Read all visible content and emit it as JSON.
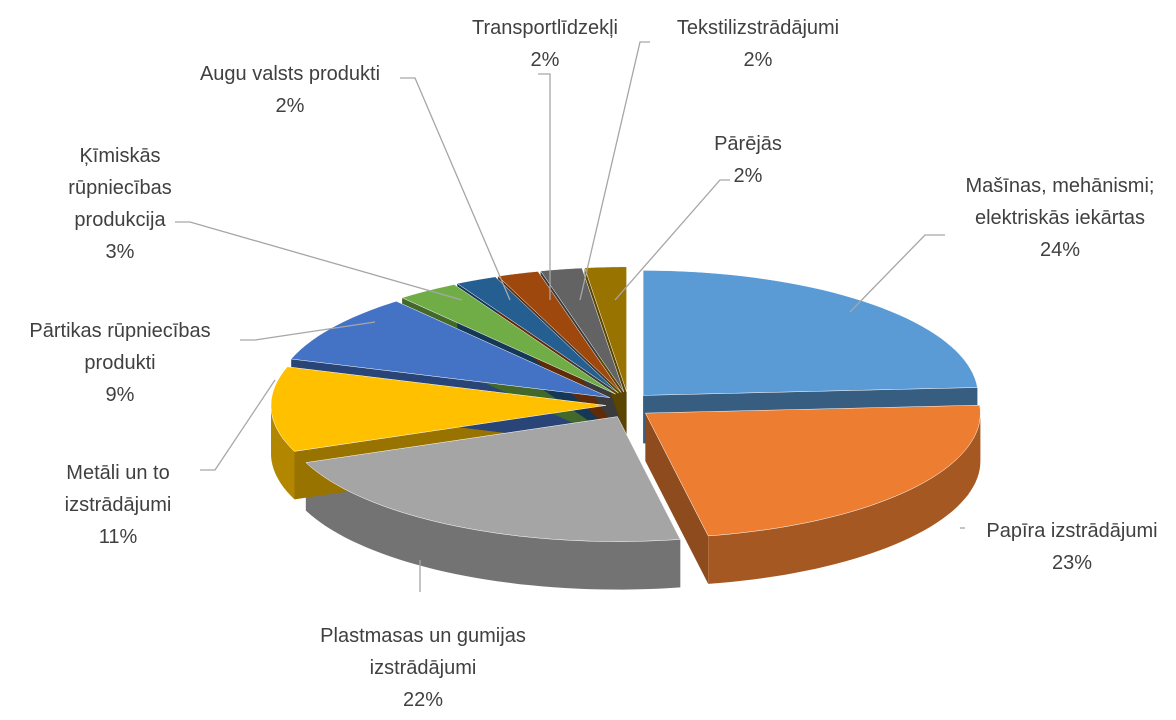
{
  "chart_data": {
    "type": "pie",
    "categories": [
      "Mašīnas, mehānismi; elektriskās iekārtas",
      "Papīra izstrādājumi",
      "Plastmasas un gumijas izstrādājumi",
      "Metāli un to izstrādājumi",
      "Pārtikas rūpniecības produkti",
      "Ķīmiskās rūpniecības produkcija",
      "Augu valsts produkti",
      "Transportlīdzekļi",
      "Tekstilizstrādājumi",
      "Pārējās"
    ],
    "values": [
      24,
      23,
      22,
      11,
      9,
      3,
      2,
      2,
      2,
      2
    ],
    "value_labels": [
      "24%",
      "23%",
      "22%",
      "11%",
      "9%",
      "3%",
      "2%",
      "2%",
      "2%",
      "2%"
    ],
    "colors": [
      "#5b9bd5",
      "#ed7d31",
      "#a5a5a5",
      "#ffc000",
      "#4472c4",
      "#70ad47",
      "#255e91",
      "#9e480e",
      "#636363",
      "#997300"
    ]
  }
}
